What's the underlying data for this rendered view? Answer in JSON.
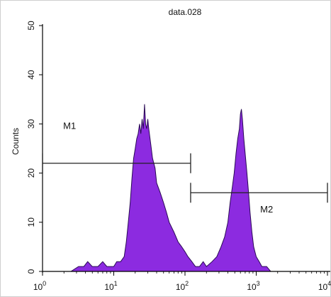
{
  "chart_data": {
    "type": "area",
    "title": "data.028",
    "xlabel": "",
    "ylabel": "Counts",
    "x_scale": "log",
    "xlim": [
      1,
      10000
    ],
    "ylim": [
      0,
      50
    ],
    "x_tick_labels": [
      {
        "value": 1,
        "base": "10",
        "exp": "0"
      },
      {
        "value": 10,
        "base": "10",
        "exp": "1"
      },
      {
        "value": 100,
        "base": "10",
        "exp": "2"
      },
      {
        "value": 1000,
        "base": "10",
        "exp": "3"
      },
      {
        "value": 10000,
        "base": "10",
        "exp": "4"
      }
    ],
    "y_ticks": [
      0,
      10,
      20,
      30,
      40,
      50
    ],
    "y_tick_labels": [
      "0",
      "10",
      "20",
      "30",
      "40",
      "50"
    ],
    "series": [
      {
        "fill": "#8c2be0",
        "stroke": "#2a0a55",
        "points": [
          [
            1.0,
            0
          ],
          [
            1.5,
            0
          ],
          [
            2.0,
            0
          ],
          [
            2.5,
            0
          ],
          [
            3.2,
            1
          ],
          [
            3.8,
            1
          ],
          [
            4.3,
            2
          ],
          [
            5.0,
            1
          ],
          [
            6.0,
            1
          ],
          [
            7.0,
            2
          ],
          [
            8.0,
            1
          ],
          [
            9.0,
            1
          ],
          [
            10.0,
            1
          ],
          [
            11.0,
            2
          ],
          [
            12.5,
            2
          ],
          [
            14.0,
            3
          ],
          [
            15.0,
            6
          ],
          [
            16.0,
            10
          ],
          [
            17.0,
            14
          ],
          [
            18.0,
            19
          ],
          [
            19.0,
            23
          ],
          [
            20.0,
            25
          ],
          [
            21.0,
            27
          ],
          [
            22.0,
            28
          ],
          [
            23.0,
            30
          ],
          [
            24.0,
            28
          ],
          [
            25.0,
            31
          ],
          [
            26.0,
            29
          ],
          [
            27.0,
            34
          ],
          [
            28.0,
            30
          ],
          [
            29.0,
            29
          ],
          [
            30.0,
            31
          ],
          [
            31.0,
            29
          ],
          [
            33.0,
            26
          ],
          [
            35.0,
            23
          ],
          [
            38.0,
            21
          ],
          [
            40.0,
            18
          ],
          [
            45.0,
            16
          ],
          [
            50.0,
            14
          ],
          [
            55.0,
            12
          ],
          [
            60.0,
            10
          ],
          [
            70.0,
            8
          ],
          [
            80.0,
            6
          ],
          [
            90.0,
            5
          ],
          [
            100.0,
            4
          ],
          [
            110.0,
            3
          ],
          [
            125.0,
            2
          ],
          [
            140.0,
            1
          ],
          [
            160.0,
            1
          ],
          [
            180.0,
            2
          ],
          [
            200.0,
            1
          ],
          [
            240.0,
            2
          ],
          [
            280.0,
            3
          ],
          [
            320.0,
            5
          ],
          [
            360.0,
            7
          ],
          [
            400.0,
            10
          ],
          [
            430.0,
            14
          ],
          [
            460.0,
            17
          ],
          [
            490.0,
            20
          ],
          [
            520.0,
            24
          ],
          [
            550.0,
            27
          ],
          [
            580.0,
            29
          ],
          [
            600.0,
            32
          ],
          [
            620.0,
            33
          ],
          [
            640.0,
            31
          ],
          [
            670.0,
            27
          ],
          [
            700.0,
            24
          ],
          [
            740.0,
            20
          ],
          [
            780.0,
            16
          ],
          [
            820.0,
            12
          ],
          [
            870.0,
            8
          ],
          [
            920.0,
            5
          ],
          [
            1000.0,
            3
          ],
          [
            1100.0,
            2
          ],
          [
            1200.0,
            1
          ],
          [
            1400.0,
            1
          ],
          [
            1600.0,
            0
          ],
          [
            2000.0,
            0
          ],
          [
            3000.0,
            0
          ],
          [
            5000.0,
            0
          ],
          [
            10000.0,
            0
          ]
        ]
      }
    ],
    "markers": [
      {
        "label": "M1",
        "x_start": 1,
        "x_end": 120,
        "y": 22
      },
      {
        "label": "M2",
        "x_start": 120,
        "x_end": 10000,
        "y": 16
      }
    ]
  }
}
